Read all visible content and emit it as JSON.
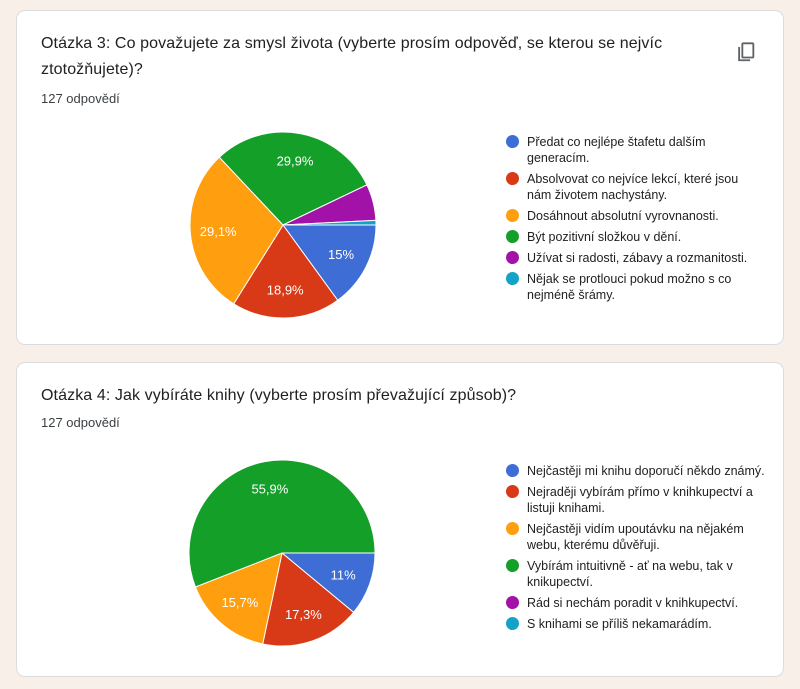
{
  "page": {
    "background_color": "#f7efe8",
    "card_background": "#ffffff",
    "card_border_color": "#dadce0"
  },
  "icons": {
    "copy_icon_color": "#5f6368"
  },
  "chart_data": [
    {
      "type": "pie",
      "title": "Otázka 3: Co považujete za smysl života (vyberte prosím odpověď, se kterou se nejvíc ztotožňujete)?",
      "responses": "127 odpovědí",
      "responses_count": 127,
      "legend_position": "right",
      "start_angle_deg": 0,
      "orientation": "clockwise-from-east",
      "slices": [
        {
          "label": "Předat co nejlépe štafetu dalším generacím.",
          "value_pct": 15.0,
          "display": "15%",
          "color": "#3e6dd6"
        },
        {
          "label": "Absolvovat co nejvíce lekcí, které jsou nám životem nachystány.",
          "value_pct": 18.9,
          "display": "18,9%",
          "color": "#d83a17"
        },
        {
          "label": "Dosáhnout absolutní vyrovnanosti.",
          "value_pct": 29.1,
          "display": "29,1%",
          "color": "#ff9e0e"
        },
        {
          "label": "Být pozitivní složkou v dění.",
          "value_pct": 29.9,
          "display": "29,9%",
          "color": "#14a028"
        },
        {
          "label": "Užívat si radosti, zábavy a rozmanitosti.",
          "value_pct": 6.3,
          "display": null,
          "color": "#a312a8"
        },
        {
          "label": "Nějak se protlouci pokud možno s co nejméně šrámy.",
          "value_pct": 0.8,
          "display": null,
          "color": "#12a3c6"
        }
      ]
    },
    {
      "type": "pie",
      "title": "Otázka 4: Jak vybíráte knihy (vyberte prosím převažující způsob)?",
      "responses": "127 odpovědí",
      "responses_count": 127,
      "legend_position": "right",
      "start_angle_deg": 0,
      "orientation": "clockwise-from-east",
      "slices": [
        {
          "label": "Nejčastěji mi knihu doporučí někdo známý.",
          "value_pct": 11.0,
          "display": "11%",
          "color": "#3e6dd6"
        },
        {
          "label": "Nejraději vybírám přímo v knihkupectví a listuji knihami.",
          "value_pct": 17.3,
          "display": "17,3%",
          "color": "#d83a17"
        },
        {
          "label": "Nejčastěji vidím upoutávku na nějakém webu, kterému důvěřuji.",
          "value_pct": 15.7,
          "display": "15,7%",
          "color": "#ff9e0e"
        },
        {
          "label": "Vybírám intuitivně - ať na webu, tak v knikupectví.",
          "value_pct": 55.9,
          "display": "55,9%",
          "color": "#14a028"
        },
        {
          "label": "Rád si nechám poradit v knihkupectví.",
          "value_pct": 0,
          "display": null,
          "color": "#a312a8"
        },
        {
          "label": "S knihami se příliš nekamarádím.",
          "value_pct": 0,
          "display": null,
          "color": "#12a3c6"
        }
      ]
    }
  ]
}
